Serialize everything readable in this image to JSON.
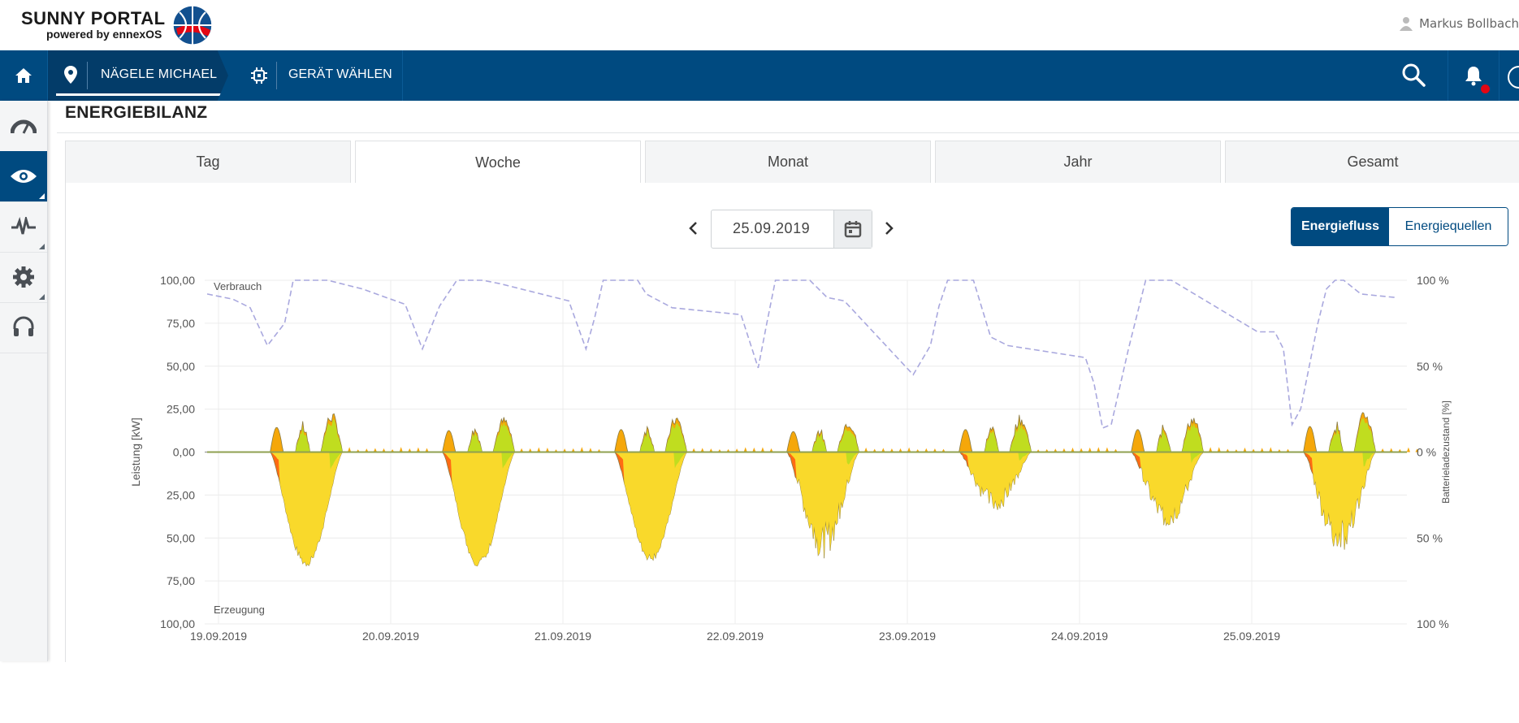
{
  "header": {
    "logo_line1": "SUNNY PORTAL",
    "logo_line2": "powered by ennexOS",
    "user_name": "Markus Bollbach"
  },
  "nav": {
    "home_icon": "home-icon",
    "plant_name": "NÄGELE MICHAEL",
    "device_select": "GERÄT WÄHLEN",
    "icons": [
      "search-icon",
      "bell-icon",
      "more-icon"
    ]
  },
  "sidebar": {
    "items": [
      {
        "icon": "dashboard-gauge-icon",
        "active": false
      },
      {
        "icon": "eye-icon",
        "active": true
      },
      {
        "icon": "pulse-icon",
        "active": false
      },
      {
        "icon": "gear-icon",
        "active": false
      },
      {
        "icon": "headset-icon",
        "active": false
      }
    ]
  },
  "page": {
    "title": "ENERGIEBILANZ",
    "tabs": [
      {
        "label": "Tag",
        "active": false
      },
      {
        "label": "Woche",
        "active": true
      },
      {
        "label": "Monat",
        "active": false
      },
      {
        "label": "Jahr",
        "active": false
      },
      {
        "label": "Gesamt",
        "active": false
      }
    ],
    "date": "25.09.2019",
    "view_toggle": {
      "selected": "Energiefluss",
      "other": "Energiequellen"
    }
  },
  "colors": {
    "navy": "#004a80",
    "pv_direct": "#f9d92b",
    "battery": "#c0dd1f",
    "grid": "#f5a70a",
    "grid_feed": "#ff6a13",
    "soc_line": "#a9a8de"
  },
  "chart_data": {
    "type": "area",
    "ylabel": "Leistung [kW]",
    "y2label": "Batterieladezustand [%]",
    "top_label": "Verbrauch",
    "bottom_label": "Erzeugung",
    "y_ticks": [
      "100,00",
      "75,00",
      "50,00",
      "25,00",
      "0,00",
      "25,00",
      "50,00",
      "75,00",
      "100,00"
    ],
    "y2_ticks": [
      "100 %",
      "50 %",
      "0 %",
      "50 %",
      "100 %"
    ],
    "ylim": [
      -100,
      100
    ],
    "x_ticks": [
      "19.09.2019",
      "20.09.2019",
      "21.09.2019",
      "22.09.2019",
      "23.09.2019",
      "24.09.2019",
      "25.09.2019"
    ],
    "days": [
      {
        "date": "19.09.2019",
        "generation_peak": 67,
        "consumption_peak": 24
      },
      {
        "date": "20.09.2019",
        "generation_peak": 67,
        "consumption_peak": 21
      },
      {
        "date": "21.09.2019",
        "generation_peak": 64,
        "consumption_peak": 22
      },
      {
        "date": "22.09.2019",
        "generation_peak": 62,
        "consumption_peak": 20
      },
      {
        "date": "23.09.2019",
        "generation_peak": 35,
        "consumption_peak": 22
      },
      {
        "date": "24.09.2019",
        "generation_peak": 45,
        "consumption_peak": 22
      },
      {
        "date": "25.09.2019",
        "generation_peak": 60,
        "consumption_peak": 25
      }
    ],
    "soc_series": {
      "x": [
        0,
        0.15,
        0.25,
        0.35,
        0.45,
        0.5,
        0.55,
        0.6,
        0.7,
        0.9,
        1.15,
        1.25,
        1.35,
        1.45,
        1.5,
        1.55,
        1.6,
        1.7,
        2.1,
        2.2,
        2.25,
        2.3,
        2.35,
        2.45,
        2.5,
        2.55,
        2.7,
        3.1,
        3.2,
        3.25,
        3.3,
        3.4,
        3.5,
        3.55,
        3.6,
        3.7,
        4.1,
        4.2,
        4.25,
        4.3,
        4.4,
        4.45,
        4.55,
        4.65,
        5.1,
        5.15,
        5.2,
        5.25,
        5.35,
        5.45,
        5.55,
        5.6,
        6.1,
        6.2,
        6.25,
        6.3,
        6.35,
        6.45,
        6.5,
        6.55,
        6.6,
        6.7,
        6.9
      ],
      "y": [
        92,
        89,
        84,
        62,
        75,
        100,
        100,
        100,
        100,
        95,
        86,
        60,
        85,
        100,
        100,
        100,
        100,
        98,
        88,
        60,
        78,
        100,
        100,
        100,
        100,
        92,
        84,
        80,
        49,
        75,
        100,
        100,
        100,
        95,
        90,
        88,
        45,
        62,
        85,
        100,
        100,
        100,
        67,
        62,
        55,
        40,
        14,
        16,
        60,
        100,
        100,
        100,
        70,
        70,
        60,
        16,
        25,
        75,
        95,
        100,
        100,
        92,
        90
      ]
    }
  }
}
